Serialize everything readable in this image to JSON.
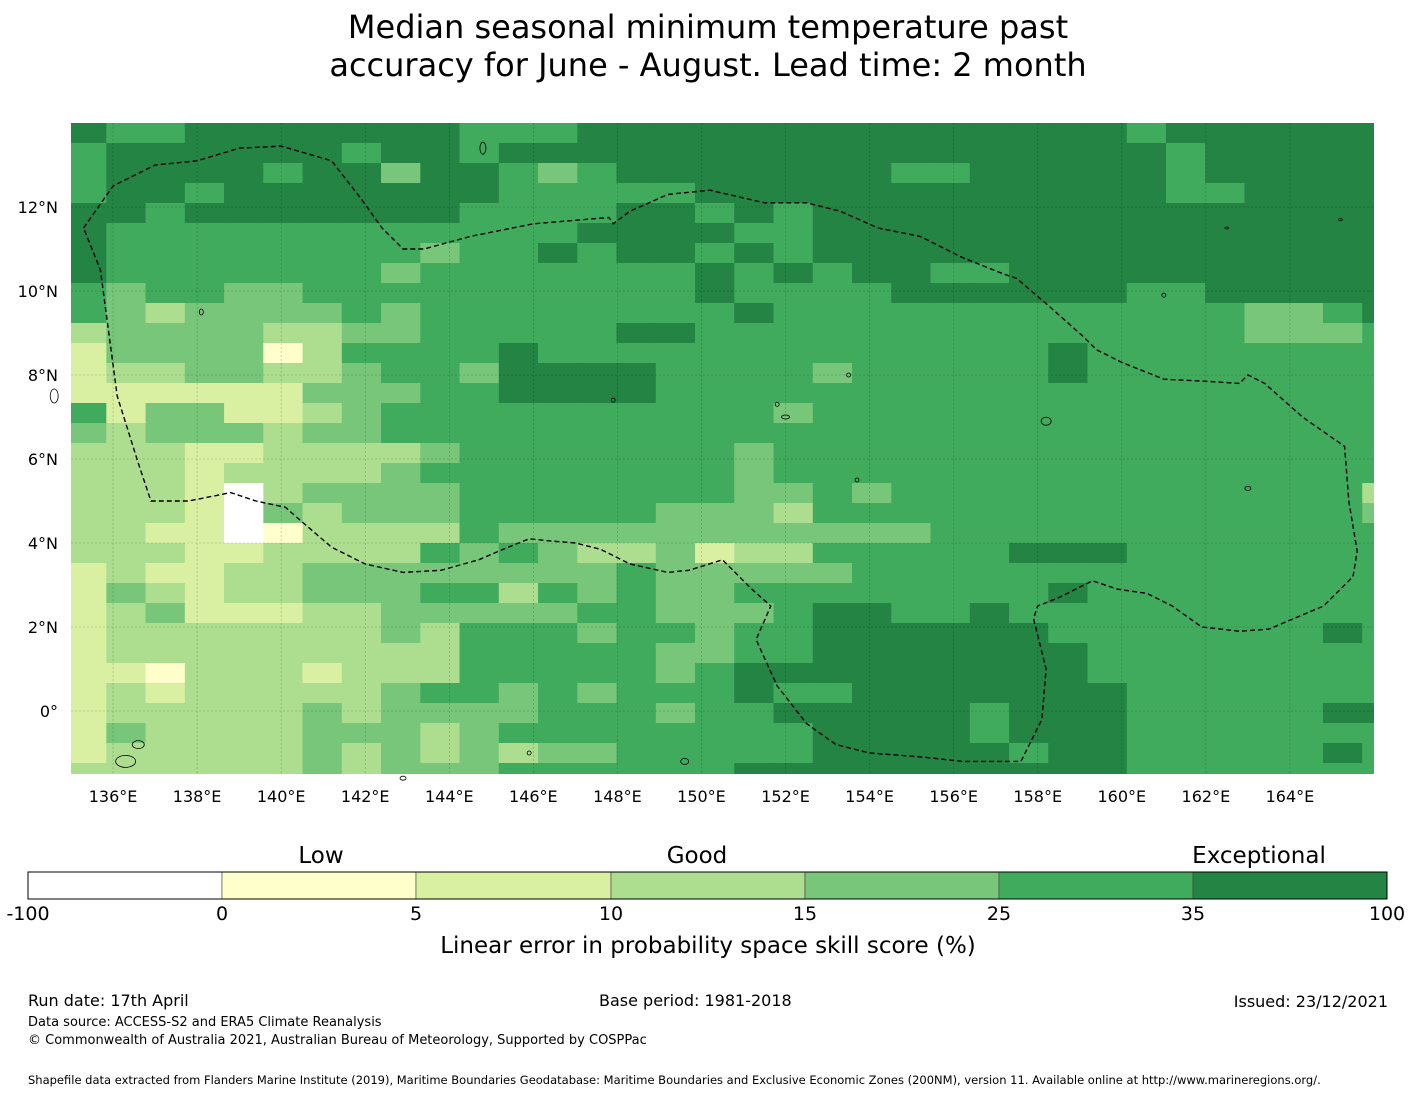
{
  "title": {
    "line1": "Median seasonal minimum temperature past",
    "line2": "accuracy for June - August. Lead time: 2 month"
  },
  "map": {
    "type": "heatmap",
    "lon_range": [
      135,
      166
    ],
    "lat_range": [
      -1.5,
      14
    ],
    "cell_degrees": 0.833,
    "lon_ticks": [
      "136°E",
      "138°E",
      "140°E",
      "142°E",
      "144°E",
      "146°E",
      "148°E",
      "150°E",
      "152°E",
      "154°E",
      "156°E",
      "158°E",
      "160°E",
      "162°E",
      "164°E"
    ],
    "lat_ticks": [
      "12°N",
      "10°N",
      "8°N",
      "6°N",
      "4°N",
      "2°N",
      "0°"
    ],
    "grid": true,
    "boundary_style": "dashed black line (EEZ)",
    "coastline": "thin black outlines of islands",
    "skill_rows_north_to_south": [
      "6556666666555666666666666665666666",
      "5666666566566666666666666666566666",
      "5666656646654566666665566666566666",
      "5665666666655555666666666666556666",
      "6656666666555566565666666666666666",
      "6555555555555666655666666666666666",
      "6555555554556566565666666666666666",
      "6555555545555555656566556666666666",
      "5455445555555555655556666665566666",
      "5434444545555555565555555555554456",
      "3444433445555566555555555555554445",
      "2444413555565555555555555655555555",
      "2334433455466665555455555655555555",
      "2222224445566665555555555555555555",
      "5244223455555555554555555555555555",
      "4344434455555555555555555555555555",
      "3332233334555555545555555555555555",
      "3332333345555555545555555555555555",
      "3332034444555555544545555555555553",
      "3332043444555554443555555555555554",
      "3322013333544444444444555555555555",
      "3332233335454334233555556665555555",
      "2322334444444454444455555555555555",
      "2432334445535454455555555655555555",
      "2342223344444554445665565555555555",
      "2333333343555455455666666555555565",
      "2333333333555554455666666655555555",
      "2213332333555554566666666655555555",
      "2323333345545455565566666665555555",
      "2333334344445554556666656665555566",
      "2433334443455555555666656665555555",
      "2333334343434455555666665665555565",
      "3333334344455555566666666665555555"
    ]
  },
  "legend": {
    "words": [
      "Low",
      "Good",
      "Exceptional"
    ],
    "ticks": [
      "-100",
      "0",
      "5",
      "10",
      "15",
      "25",
      "35",
      "100"
    ],
    "colors": [
      "#ffffff",
      "#ffffcc",
      "#d9f0a3",
      "#addd8e",
      "#78c679",
      "#41ab5d",
      "#238443"
    ],
    "title": "Linear error in probability space skill score (%)"
  },
  "footer": {
    "run_date": "Run date: 17th April",
    "base_period": "Base period: 1981-2018",
    "issued": "Issued: 23/12/2021",
    "data_source": "Data source: ACCESS-S2 and ERA5 Climate Reanalysis",
    "copyright": "© Commonwealth of Australia 2021, Australian Bureau of Meteorology, Supported by COSPPac",
    "shapefile": "Shapefile data extracted from Flanders Marine Institute (2019), Maritime Boundaries Geodatabase: Maritime Boundaries and Exclusive Economic Zones (200NM), version 11. Available online at http://www.marineregions.org/."
  }
}
